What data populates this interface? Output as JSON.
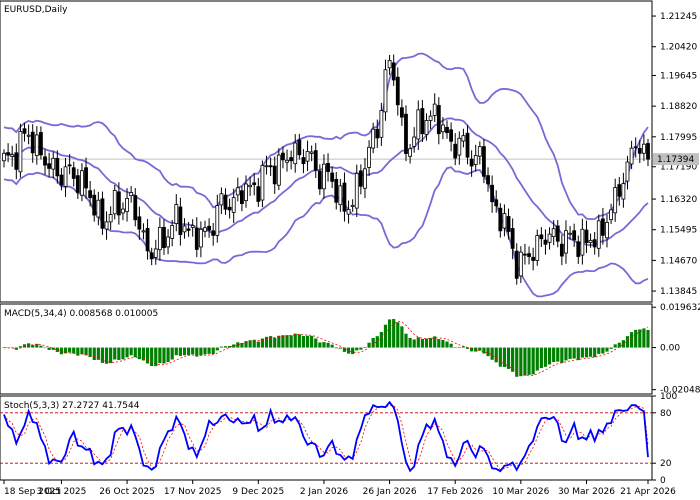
{
  "chart_data": {
    "type": "candlestick",
    "symbol_label": "EURUSD,Daily",
    "last_price_label": "1.17394",
    "last_price": 1.17394,
    "x_tick_labels": [
      "18 Sep 2025",
      "3 Oct 2025",
      "26 Oct 2025",
      "17 Nov 2025",
      "9 Dec 2025",
      "2 Jan 2026",
      "26 Jan 2026",
      "17 Feb 2026",
      "10 Mar 2026",
      "30 Mar 2026",
      "21 Apr 2026"
    ],
    "x_tick_index": [
      0,
      14,
      30,
      46,
      62,
      78,
      94,
      110,
      126,
      142,
      157
    ],
    "n_bars": 158,
    "price_panel": {
      "ylim": [
        1.1355,
        1.2165
      ],
      "ticks": [
        1.21245,
        1.2042,
        1.19645,
        1.1882,
        1.17995,
        1.1719,
        1.1632,
        1.15495,
        1.1467,
        1.13845
      ],
      "tick_labels": [
        "1.21245",
        "1.20420",
        "1.19645",
        "1.18820",
        "1.17995",
        "1.17190",
        "1.16320",
        "1.15495",
        "1.14670",
        "1.13845"
      ],
      "close_anchors": [
        [
          0,
          1.173
        ],
        [
          6,
          1.18
        ],
        [
          12,
          1.171
        ],
        [
          18,
          1.169
        ],
        [
          24,
          1.158
        ],
        [
          30,
          1.163
        ],
        [
          36,
          1.149
        ],
        [
          42,
          1.157
        ],
        [
          48,
          1.153
        ],
        [
          54,
          1.162
        ],
        [
          60,
          1.166
        ],
        [
          66,
          1.172
        ],
        [
          72,
          1.176
        ],
        [
          78,
          1.17
        ],
        [
          84,
          1.161
        ],
        [
          90,
          1.178
        ],
        [
          94,
          1.2
        ],
        [
          98,
          1.178
        ],
        [
          104,
          1.186
        ],
        [
          110,
          1.178
        ],
        [
          116,
          1.174
        ],
        [
          120,
          1.16
        ],
        [
          126,
          1.146
        ],
        [
          132,
          1.153
        ],
        [
          138,
          1.152
        ],
        [
          144,
          1.152
        ],
        [
          148,
          1.16
        ],
        [
          152,
          1.172
        ],
        [
          154,
          1.178
        ],
        [
          157,
          1.17394
        ]
      ],
      "bollinger_period": 20,
      "bollinger_dev": 2
    },
    "macd_panel": {
      "label": "MACD(5,34,4) 0.008568 0.010005",
      "params": [
        5,
        34,
        4
      ],
      "main_value": 0.008568,
      "signal_value": 0.010005,
      "ylim": [
        -0.0226,
        0.0212
      ],
      "ticks": [
        0.019632,
        0.0,
        -0.02048
      ],
      "tick_labels": [
        "0.019632",
        "0.00",
        "-0.02048"
      ]
    },
    "stoch_panel": {
      "label": "Stoch(5,3,3) 27.2727 41.7544",
      "params": [
        5,
        3,
        3
      ],
      "main_value": 27.2727,
      "signal_value": 41.7544,
      "ylim": [
        0,
        100
      ],
      "levels": [
        80,
        20
      ],
      "ticks": [
        100,
        80,
        20,
        0
      ],
      "tick_labels": [
        "100",
        "80",
        "20",
        "0"
      ]
    },
    "colors": {
      "bull_candle": "#ffffff",
      "bear_candle": "#000000",
      "bollinger": "#7b68d8",
      "macd_hist": "#008000",
      "macd_signal": "#ff0000",
      "stoch_main": "#0000ff",
      "stoch_signal": "#ff0000",
      "stoch_levels": "#c00000",
      "grid_line": "#c0c0c0"
    }
  }
}
